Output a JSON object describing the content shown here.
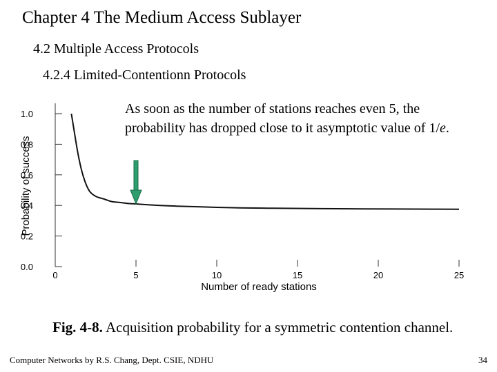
{
  "slide": {
    "title": "Chapter 4 The Medium Access Sublayer",
    "subtitle1": "4.2 Multiple Access Protocols",
    "subtitle2": "4.2.4 Limited-Contentionn Protocols",
    "note_before": "As soon as the number of stations reaches even 5, the probability has dropped close to it asymptotic value of 1/",
    "note_italic": "e",
    "note_after": ".",
    "arrow_icon": "down-arrow-icon",
    "arrow_color": "#2e9e6e",
    "arrow_points_to_x": 5,
    "caption_label": "Fig.  4-8.",
    "caption_text": " Acquisition probability for a symmetric contention channel.",
    "footer_left": "Computer Networks by R.S. Chang, Dept. CSIE, NDHU",
    "footer_right": "34"
  },
  "chart_data": {
    "type": "line",
    "title": "",
    "xlabel": "Number of ready stations",
    "ylabel": "Probability of success",
    "xlim": [
      0,
      25
    ],
    "ylim": [
      0,
      1
    ],
    "xticks": [
      0,
      5,
      10,
      15,
      20,
      25
    ],
    "yticks": [
      "0.0",
      "0.2",
      "0.4",
      "0.6",
      "0.8",
      "1.0"
    ],
    "grid": false,
    "series": [
      {
        "x": [
          1,
          1.5,
          2,
          2.5,
          3,
          3.5,
          4,
          4.5,
          5,
          6,
          7,
          8,
          10,
          12,
          15,
          18,
          20,
          22,
          25
        ],
        "values": [
          1.0,
          0.67,
          0.5,
          0.456,
          0.444,
          0.423,
          0.42,
          0.412,
          0.41,
          0.402,
          0.397,
          0.394,
          0.387,
          0.383,
          0.38,
          0.378,
          0.377,
          0.376,
          0.375
        ]
      }
    ]
  }
}
